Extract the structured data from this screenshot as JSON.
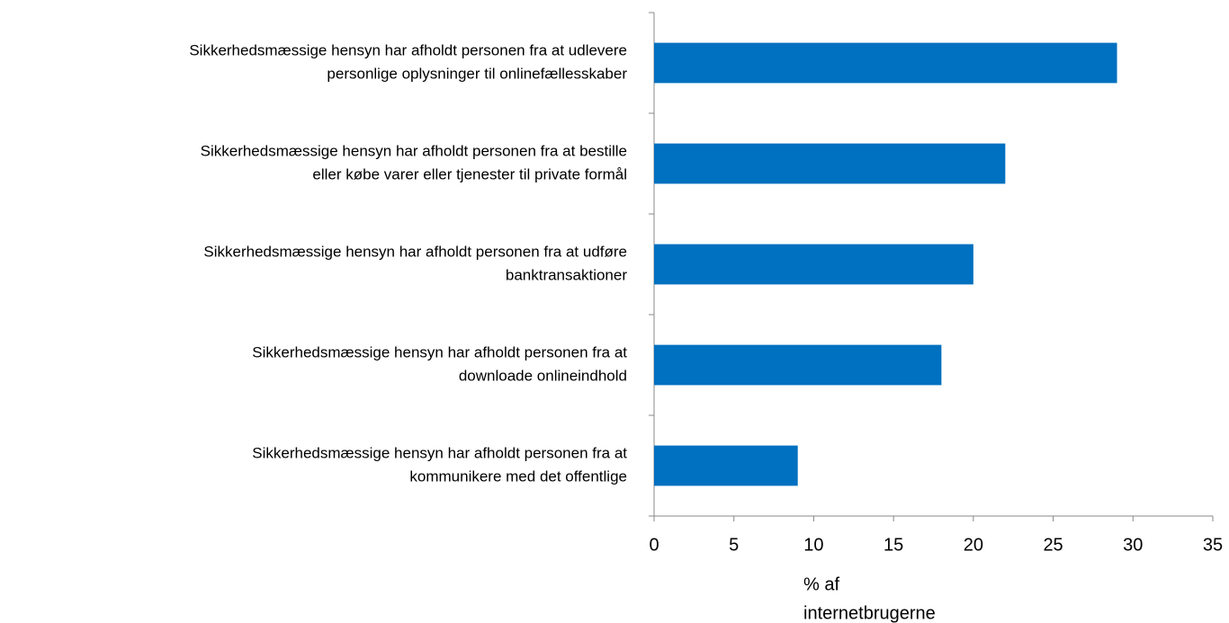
{
  "chart_data": {
    "type": "bar",
    "orientation": "horizontal",
    "categories": [
      [
        "Sikkerhedsmæssige hensyn har afholdt personen fra at udlevere",
        "personlige oplysninger til onlinefællesskaber"
      ],
      [
        "Sikkerhedsmæssige hensyn har afholdt personen fra at bestille",
        "eller købe varer eller tjenester til private formål"
      ],
      [
        "Sikkerhedsmæssige hensyn har afholdt personen fra at udføre",
        "banktransaktioner"
      ],
      [
        "Sikkerhedsmæssige hensyn har afholdt personen fra at",
        "downloade onlineindhold"
      ],
      [
        "Sikkerhedsmæssige hensyn har afholdt personen fra at",
        "kommunikere med det offentlige"
      ]
    ],
    "values": [
      29,
      22,
      20,
      18,
      9
    ],
    "color": "#0070c0",
    "xlim": [
      0,
      35
    ],
    "xticks": [
      0,
      5,
      10,
      15,
      20,
      25,
      30,
      35
    ],
    "xlabel": [
      "% af",
      "internetbrugerne"
    ]
  }
}
